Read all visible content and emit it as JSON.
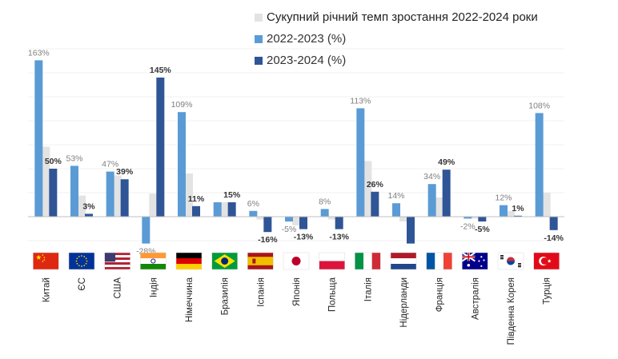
{
  "chart_data": {
    "type": "bar",
    "title": "",
    "xlabel": "",
    "ylabel": "",
    "ylim": [
      -30,
      170
    ],
    "legend_position": "top-right",
    "colors": {
      "cagr": "#e3e3e3",
      "y2022_2023": "#5b9bd5",
      "y2023_2024": "#2f5597"
    },
    "categories": [
      "Китай",
      "ЄС",
      "США",
      "Індія",
      "Німеччина",
      "Бразилія",
      "Іспанія",
      "Японія",
      "Польща",
      "Італія",
      "Нідерланди",
      "Франція",
      "Австралія",
      "Південна Корея",
      "Турція"
    ],
    "flags": [
      "china-flag",
      "eu-flag",
      "usa-flag",
      "india-flag",
      "germany-flag",
      "brazil-flag",
      "spain-flag",
      "japan-flag",
      "poland-flag",
      "italy-flag",
      "netherlands-flag",
      "france-flag",
      "australia-flag",
      "south-korea-flag",
      "turkey-flag"
    ],
    "series": [
      {
        "name": "Сукупний річний темп зростання 2022-2024 роки",
        "values": [
          73,
          22,
          43,
          24,
          45,
          15,
          -3,
          -9,
          -3,
          58,
          -5,
          20,
          -2,
          6,
          25
        ]
      },
      {
        "name": "2022-2023 (%)",
        "values": [
          163,
          53,
          47,
          -28,
          109,
          15,
          6,
          -5,
          8,
          113,
          14,
          34,
          -2,
          12,
          108
        ],
        "labels": [
          "163%",
          "53%",
          "47%",
          "-28%",
          "109%",
          "",
          "6%",
          "-5%",
          "8%",
          "113%",
          "14%",
          "34%",
          "-2%",
          "12%",
          "108%"
        ]
      },
      {
        "name": "2023-2024 (%)",
        "values": [
          50,
          3,
          39,
          145,
          11,
          15,
          -16,
          -13,
          -13,
          26,
          -28,
          49,
          -5,
          1,
          -14
        ],
        "labels": [
          "50%",
          "3%",
          "39%",
          "145%",
          "11%",
          "15%",
          "-16%",
          "-13%",
          "-13%",
          "26%",
          "",
          "49%",
          "-5%",
          "1%",
          "-14%"
        ]
      }
    ]
  }
}
